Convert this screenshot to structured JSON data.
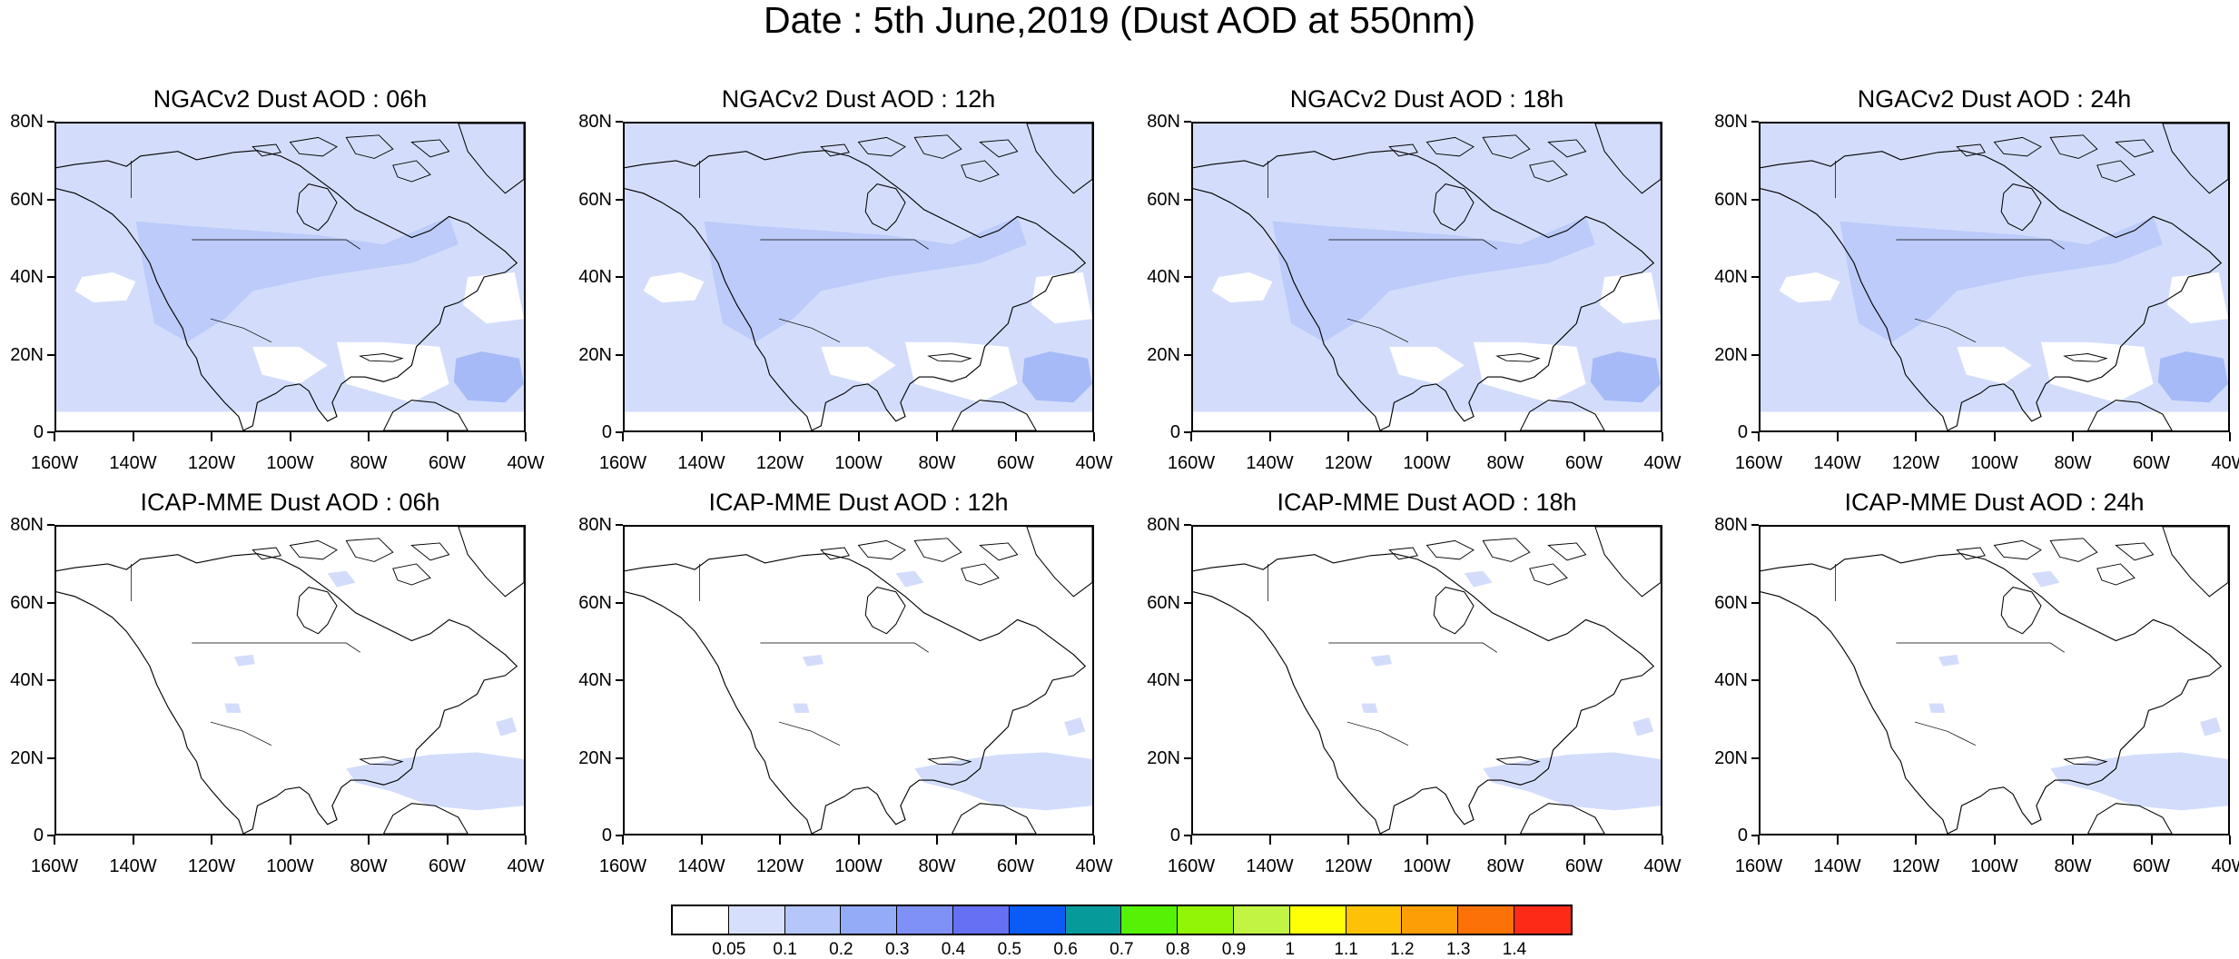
{
  "title": "Date : 5th June,2019 (Dust AOD at 550nm)",
  "lat_ticks": [
    "80N",
    "60N",
    "40N",
    "20N",
    "0"
  ],
  "lon_ticks": [
    "160W",
    "140W",
    "120W",
    "100W",
    "80W",
    "60W",
    "40W"
  ],
  "map_extent": {
    "lon": [
      -160,
      -40
    ],
    "lat": [
      0,
      80
    ]
  },
  "panels": [
    {
      "title": "NGACv2 Dust AOD : 06h",
      "model": "NGACv2",
      "hour": "06h"
    },
    {
      "title": "NGACv2 Dust AOD : 12h",
      "model": "NGACv2",
      "hour": "12h"
    },
    {
      "title": "NGACv2 Dust AOD : 18h",
      "model": "NGACv2",
      "hour": "18h"
    },
    {
      "title": "NGACv2 Dust AOD : 24h",
      "model": "NGACv2",
      "hour": "24h"
    },
    {
      "title": "ICAP-MME Dust AOD : 06h",
      "model": "ICAP-MME",
      "hour": "06h"
    },
    {
      "title": "ICAP-MME Dust AOD : 12h",
      "model": "ICAP-MME",
      "hour": "12h"
    },
    {
      "title": "ICAP-MME Dust AOD : 18h",
      "model": "ICAP-MME",
      "hour": "18h"
    },
    {
      "title": "ICAP-MME Dust AOD : 24h",
      "model": "ICAP-MME",
      "hour": "24h"
    }
  ],
  "colorbar": {
    "labels": [
      "0.05",
      "0.1",
      "0.2",
      "0.3",
      "0.4",
      "0.5",
      "0.6",
      "0.7",
      "0.8",
      "0.9",
      "1",
      "1.1",
      "1.2",
      "1.3",
      "1.4"
    ],
    "colors": [
      "#ffffff",
      "#d6e0fc",
      "#b4c6fa",
      "#94acf8",
      "#7f90f6",
      "#6670f2",
      "#0b5cf6",
      "#069a9a",
      "#55f206",
      "#92f406",
      "#c2f444",
      "#ffff06",
      "#fdc206",
      "#fd9e06",
      "#fc7206",
      "#fc2a16"
    ]
  },
  "colors": {
    "light_dust": "#d3ddfb",
    "medium_dust": "#bccbf9",
    "heavy_dust": "#a6baf7",
    "coast": "#000000"
  }
}
